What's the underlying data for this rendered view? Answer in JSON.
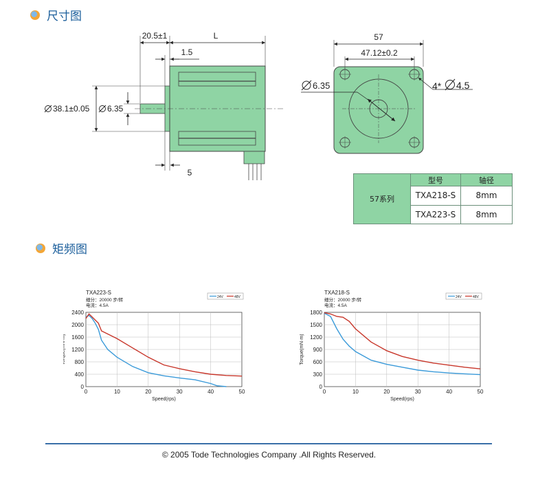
{
  "sections": {
    "dimensions_title": "尺寸图",
    "torque_title": "矩频图"
  },
  "drawing": {
    "side_view": {
      "dim_shaft_offset": "20.5±1",
      "dim_length": "L",
      "dim_flange": "1.5",
      "dim_boss_dia": "38.1±0.05",
      "dim_shaft_dia": "6.35",
      "dim_boss_len": "5"
    },
    "front_view": {
      "dim_width": "57",
      "dim_hole_spacing": "47.12±0.2",
      "dim_shaft_dia": "6.35",
      "dim_holes": "4*",
      "dim_hole_dia": "4.5"
    },
    "color_body": "#8fd4a4"
  },
  "spec_table": {
    "headers": [
      "型号",
      "轴径"
    ],
    "series": "57系列",
    "rows": [
      {
        "model": "TXA218-S",
        "shaft": "8mm"
      },
      {
        "model": "TXA223-S",
        "shaft": "8mm"
      }
    ]
  },
  "chart_data": [
    {
      "type": "line",
      "title": "TXA223-S",
      "subtitle_lines": [
        "细分：20000 步/转",
        "电流：4.5A"
      ],
      "xlabel": "Speed(rps)",
      "ylabel": "Torque(mN·m)",
      "xlim": [
        0,
        50
      ],
      "ylim": [
        0,
        2400
      ],
      "xticks": [
        0,
        10,
        20,
        30,
        40,
        50
      ],
      "yticks": [
        0,
        400,
        800,
        1200,
        1600,
        2000,
        2400
      ],
      "grid": true,
      "legend_position": "top-right",
      "series": [
        {
          "name": "24V",
          "color": "#3a9ad9",
          "x": [
            0,
            1,
            2,
            3,
            4,
            5,
            7,
            10,
            15,
            20,
            25,
            30,
            35,
            40,
            42,
            45
          ],
          "y": [
            2250,
            2300,
            2200,
            2050,
            1850,
            1500,
            1200,
            950,
            650,
            450,
            350,
            280,
            220,
            100,
            30,
            0
          ]
        },
        {
          "name": "48V",
          "color": "#c8362a",
          "x": [
            0,
            1,
            2,
            3,
            4,
            5,
            7,
            10,
            15,
            20,
            25,
            30,
            35,
            40,
            45,
            50
          ],
          "y": [
            2200,
            2350,
            2250,
            2150,
            2050,
            1800,
            1700,
            1550,
            1250,
            950,
            700,
            580,
            480,
            400,
            360,
            340
          ]
        }
      ]
    },
    {
      "type": "line",
      "title": "TXA218-S",
      "subtitle_lines": [
        "细分：20000 步/转",
        "电流：4.5A"
      ],
      "xlabel": "Speed(rps)",
      "ylabel": "Torque(mN·m)",
      "xlim": [
        0,
        50
      ],
      "ylim": [
        0,
        1800
      ],
      "xticks": [
        0,
        10,
        20,
        30,
        40,
        50
      ],
      "yticks": [
        0,
        300,
        600,
        900,
        1200,
        1500,
        1800
      ],
      "grid": true,
      "legend_position": "top-right",
      "series": [
        {
          "name": "24V",
          "color": "#3a9ad9",
          "x": [
            0,
            2,
            4,
            6,
            8,
            10,
            15,
            20,
            25,
            30,
            35,
            40,
            45,
            50
          ],
          "y": [
            1780,
            1700,
            1400,
            1150,
            980,
            850,
            640,
            540,
            470,
            400,
            360,
            330,
            310,
            290
          ]
        },
        {
          "name": "48V",
          "color": "#c8362a",
          "x": [
            0,
            2,
            4,
            6,
            8,
            10,
            15,
            20,
            25,
            30,
            35,
            40,
            45,
            50
          ],
          "y": [
            1790,
            1760,
            1700,
            1680,
            1580,
            1400,
            1080,
            870,
            730,
            640,
            570,
            520,
            470,
            430
          ]
        }
      ]
    }
  ],
  "footer": {
    "text": "©  2005 Tode Technologies Company .All Rights Reserved."
  }
}
